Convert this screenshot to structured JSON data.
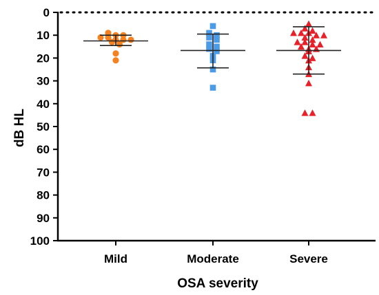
{
  "chart_data": {
    "type": "scatter",
    "xlabel": "OSA severity",
    "ylabel": "dB HL",
    "ylim": [
      0,
      100
    ],
    "y_inverted": true,
    "y_ticks": [
      0,
      10,
      20,
      30,
      40,
      50,
      60,
      70,
      80,
      90,
      100
    ],
    "reference_line": {
      "y": 0,
      "style": "dotted"
    },
    "categories": [
      "Mild",
      "Moderate",
      "Severe"
    ],
    "series": [
      {
        "category": "Mild",
        "marker": "circle",
        "color": "#F58220",
        "mean": 12.5,
        "sd_low": 10.0,
        "sd_high": 14.5,
        "values": [
          10,
          11,
          12,
          13,
          9,
          12,
          12,
          11,
          10,
          14,
          18,
          21
        ]
      },
      {
        "category": "Moderate",
        "marker": "square",
        "color": "#4C9BE8",
        "mean": 16.7,
        "sd_low": 9.5,
        "sd_high": 24.3,
        "values": [
          6,
          9,
          10,
          11,
          12,
          14,
          15,
          16,
          17,
          19,
          21,
          25,
          33
        ]
      },
      {
        "category": "Severe",
        "marker": "triangle",
        "color": "#E8202A",
        "mean": 16.7,
        "sd_low": 6.3,
        "sd_high": 27.0,
        "values": [
          5,
          7,
          8,
          9,
          9,
          9,
          10,
          10,
          11,
          12,
          13,
          13,
          14,
          14,
          15,
          16,
          16,
          17,
          19,
          20,
          21,
          24,
          27,
          31,
          44,
          44
        ]
      }
    ]
  }
}
